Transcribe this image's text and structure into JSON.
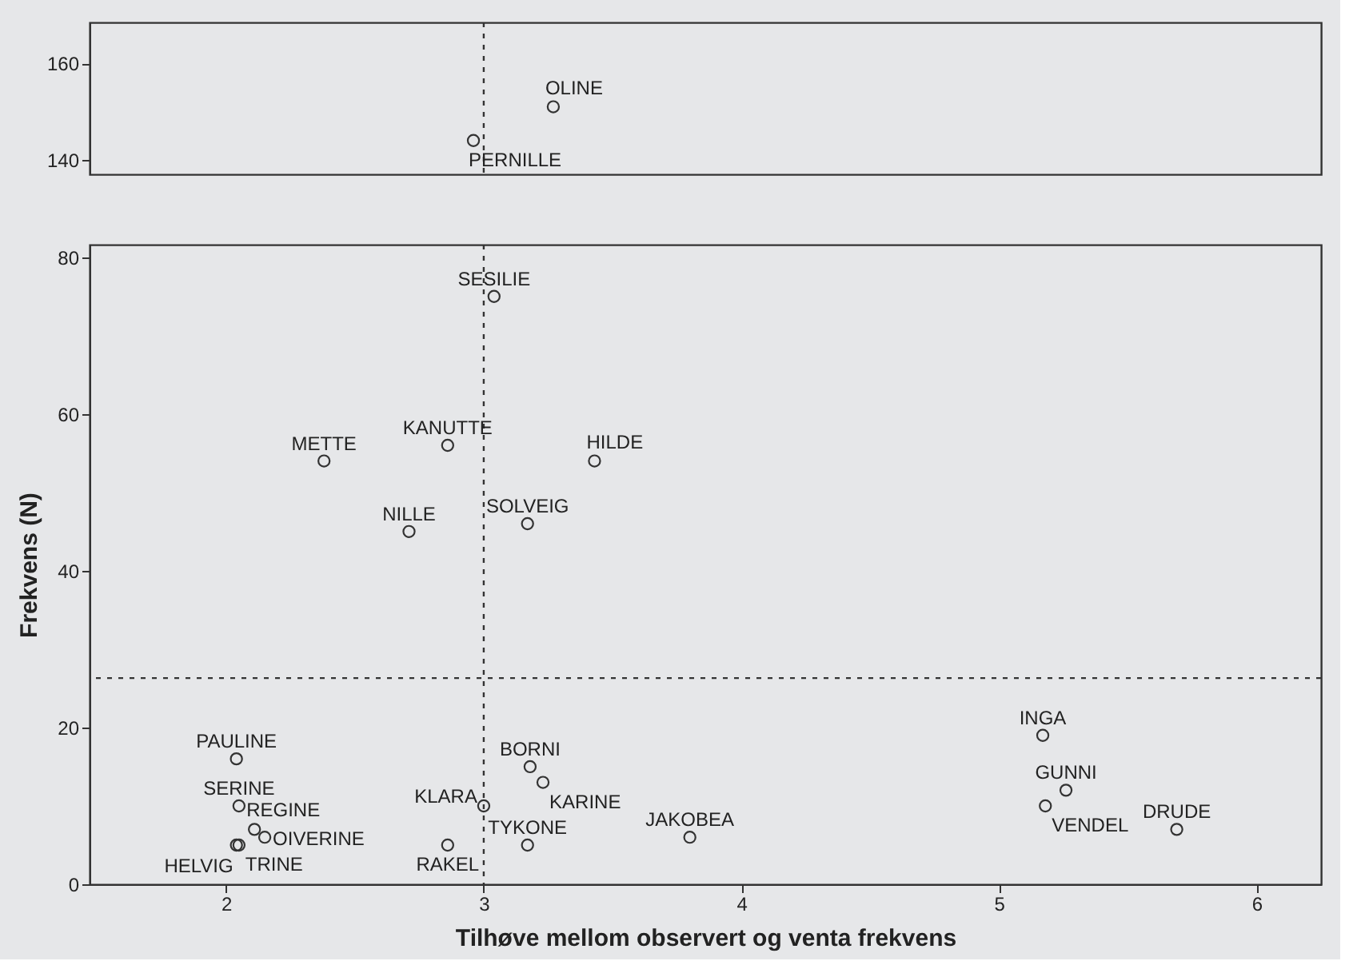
{
  "chart_data": [
    {
      "type": "scatter",
      "x": [
        3.27,
        2.96
      ],
      "values": [
        151,
        144
      ],
      "color": "#333333",
      "marker": "circle",
      "xlim": [
        1.47,
        6.25
      ],
      "ylim": [
        137,
        168.5
      ],
      "yticks": [
        140,
        160
      ],
      "tick_labels": "y",
      "ref_lines": [
        {
          "axis": "x",
          "value": 3,
          "line_style": "dashed",
          "color": "#333333"
        }
      ],
      "annotations": [
        {
          "text": "OLINE",
          "x": 3.27,
          "y": 151
        },
        {
          "text": "PERNILLE",
          "x": 2.96,
          "y": 144
        }
      ]
    },
    {
      "type": "scatter",
      "x": [
        3.04,
        2.86,
        2.38,
        3.43,
        2.71,
        3.17,
        2.04,
        2.05,
        2.11,
        2.15,
        2.04,
        2.05,
        3.0,
        3.18,
        3.23,
        3.17,
        2.86,
        3.8,
        5.17,
        5.26,
        5.18,
        5.69
      ],
      "values": [
        75,
        56,
        54,
        54,
        45,
        46,
        16,
        10,
        7,
        6,
        5,
        5,
        10,
        15,
        13,
        5,
        5,
        6,
        19,
        12,
        10,
        7
      ],
      "color": "#333333",
      "marker": "circle",
      "xlim": [
        1.47,
        6.25
      ],
      "ylim": [
        0,
        81.6
      ],
      "xticks": [
        2,
        3,
        4,
        5,
        6
      ],
      "yticks": [
        0,
        20,
        40,
        60,
        80
      ],
      "xlabel": "Tilhøve mellom observert og venta frekvens",
      "ylabel": "Frekvens (N)",
      "ref_lines": [
        {
          "axis": "x",
          "value": 3,
          "line_style": "dashed",
          "color": "#333333"
        },
        {
          "axis": "y",
          "value": 26.3,
          "line_style": "dashed",
          "color": "#333333"
        }
      ],
      "annotations": [
        {
          "text": "SESILIE",
          "x": 3.04,
          "y": 75
        },
        {
          "text": "KANUTTE",
          "x": 2.86,
          "y": 56
        },
        {
          "text": "METTE",
          "x": 2.38,
          "y": 54
        },
        {
          "text": "HILDE",
          "x": 3.43,
          "y": 54
        },
        {
          "text": "NILLE",
          "x": 2.71,
          "y": 45
        },
        {
          "text": "SOLVEIG",
          "x": 3.17,
          "y": 46
        },
        {
          "text": "PAULINE",
          "x": 2.04,
          "y": 16
        },
        {
          "text": "SERINE",
          "x": 2.05,
          "y": 10
        },
        {
          "text": "REGINE",
          "x": 2.11,
          "y": 7
        },
        {
          "text": "OIVERINE",
          "x": 2.15,
          "y": 6
        },
        {
          "text": "HELVIG",
          "x": 2.04,
          "y": 5
        },
        {
          "text": "TRINE",
          "x": 2.05,
          "y": 5
        },
        {
          "text": "KLARA",
          "x": 3.0,
          "y": 10
        },
        {
          "text": "BORNI",
          "x": 3.18,
          "y": 15
        },
        {
          "text": "KARINE",
          "x": 3.23,
          "y": 13
        },
        {
          "text": "TYKONE",
          "x": 3.17,
          "y": 5
        },
        {
          "text": "RAKEL",
          "x": 2.86,
          "y": 5
        },
        {
          "text": "JAKOBEA",
          "x": 3.8,
          "y": 6
        },
        {
          "text": "INGA",
          "x": 5.17,
          "y": 19
        },
        {
          "text": "GUNNI",
          "x": 5.26,
          "y": 12
        },
        {
          "text": "VENDEL",
          "x": 5.18,
          "y": 10
        },
        {
          "text": "DRUDE",
          "x": 5.69,
          "y": 7
        }
      ]
    }
  ]
}
